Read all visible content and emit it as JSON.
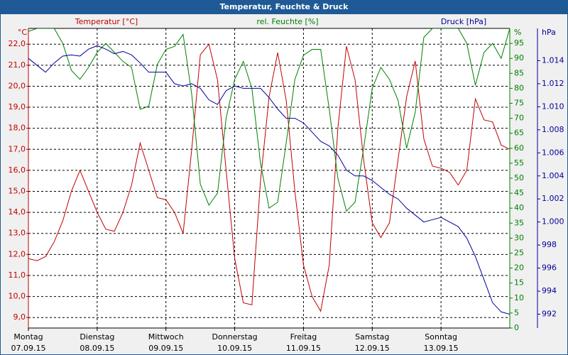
{
  "chart_data": {
    "type": "line",
    "title": "Temperatur, Feuchte & Druck",
    "y_label": "Temperatur [°C]",
    "y2_label": "rel. Feuchte [%]",
    "y3_label": "Druck [hPa]",
    "y_unit": "°C",
    "y2_unit": "%",
    "y3_unit": "hPa",
    "grid": true,
    "xlim": [
      0,
      7
    ],
    "xticks": [
      {
        "value": 0,
        "label": "Montag"
      },
      {
        "value": 1,
        "label": "Dienstag"
      },
      {
        "value": 2,
        "label": "Mittwoch"
      },
      {
        "value": 3,
        "label": "Donnerstag"
      },
      {
        "value": 4,
        "label": "Freitag"
      },
      {
        "value": 5,
        "label": "Samstag"
      },
      {
        "value": 6,
        "label": "Sonntag"
      }
    ],
    "xtick_dates": [
      "07.09.15",
      "08.09.15",
      "09.09.15",
      "10.09.15",
      "11.09.15",
      "12.09.15",
      "13.09.15"
    ],
    "ylim": [
      8.5,
      22.75
    ],
    "yticks": [
      {
        "value": 9,
        "label": "9,0"
      },
      {
        "value": 10,
        "label": "10,0"
      },
      {
        "value": 11,
        "label": "11,0"
      },
      {
        "value": 12,
        "label": "12,0"
      },
      {
        "value": 13,
        "label": "13,0"
      },
      {
        "value": 14,
        "label": "14,0"
      },
      {
        "value": 15,
        "label": "15,0"
      },
      {
        "value": 16,
        "label": "16,0"
      },
      {
        "value": 17,
        "label": "17,0"
      },
      {
        "value": 18,
        "label": "18,0"
      },
      {
        "value": 19,
        "label": "19,0"
      },
      {
        "value": 20,
        "label": "20,0"
      },
      {
        "value": 21,
        "label": "21,0"
      },
      {
        "value": 22,
        "label": "22,0"
      }
    ],
    "y2lim": [
      0,
      100
    ],
    "y2ticks": [
      0,
      5,
      10,
      15,
      20,
      25,
      30,
      35,
      40,
      45,
      50,
      55,
      60,
      65,
      70,
      75,
      80,
      85,
      90,
      95
    ],
    "y3lim": [
      990.8,
      1016.8
    ],
    "y3ticks": [
      992,
      994,
      996,
      998,
      {
        "value": 1000,
        "label": "1.000"
      },
      {
        "value": 1002,
        "label": "1.002"
      },
      {
        "value": 1004,
        "label": "1.004"
      },
      {
        "value": 1006,
        "label": "1.006"
      },
      {
        "value": 1008,
        "label": "1.008"
      },
      {
        "value": 1010,
        "label": "1.010"
      },
      {
        "value": 1012,
        "label": "1.012"
      },
      {
        "value": 1014,
        "label": "1.014"
      }
    ],
    "x": [
      0,
      0.125,
      0.25,
      0.375,
      0.5,
      0.625,
      0.75,
      0.875,
      1,
      1.125,
      1.25,
      1.375,
      1.5,
      1.625,
      1.75,
      1.875,
      2,
      2.125,
      2.25,
      2.375,
      2.5,
      2.625,
      2.75,
      2.875,
      3,
      3.125,
      3.25,
      3.375,
      3.5,
      3.625,
      3.75,
      3.875,
      4,
      4.125,
      4.25,
      4.375,
      4.5,
      4.625,
      4.75,
      4.875,
      5,
      5.125,
      5.25,
      5.375,
      5.5,
      5.625,
      5.75,
      5.875,
      6,
      6.125,
      6.25,
      6.375,
      6.5,
      6.625,
      6.75,
      6.875,
      7
    ],
    "series": [
      {
        "name": "Temperatur",
        "color": "#c00000",
        "axis": "y",
        "values": [
          11.8,
          11.7,
          11.9,
          12.6,
          13.6,
          15.0,
          16.0,
          15.0,
          14.0,
          13.2,
          13.1,
          14.0,
          15.3,
          17.3,
          16.0,
          14.7,
          14.6,
          14.0,
          13.0,
          17.0,
          21.5,
          22.0,
          20.3,
          16.0,
          11.8,
          9.7,
          9.6,
          15.5,
          19.5,
          21.6,
          19.3,
          15.0,
          11.5,
          10.0,
          9.3,
          11.5,
          18.0,
          21.9,
          20.3,
          16.5,
          13.5,
          12.8,
          13.5,
          16.5,
          19.5,
          21.2,
          17.5,
          16.2,
          16.1,
          15.9,
          15.3,
          16.0,
          19.4,
          18.4,
          18.3,
          17.2,
          17.0
        ]
      },
      {
        "name": "rel. Feuchte",
        "color": "#008000",
        "axis": "y2",
        "values": [
          99,
          100,
          100,
          100,
          95,
          86,
          83,
          87,
          92,
          95,
          92,
          89,
          87,
          73,
          74,
          88,
          93,
          94,
          98,
          78,
          48,
          41,
          45,
          70,
          83,
          89,
          80,
          55,
          40,
          42,
          62,
          83,
          91,
          93,
          93,
          73,
          50,
          39,
          42,
          60,
          80,
          87,
          83,
          76,
          60,
          72,
          97,
          100,
          100,
          100,
          100,
          95,
          81,
          92,
          95,
          90,
          100
        ]
      },
      {
        "name": "Druck",
        "color": "#00009c",
        "axis": "y3",
        "values": [
          1014.2,
          1013.6,
          1013.0,
          1013.8,
          1014.4,
          1014.5,
          1014.4,
          1015.0,
          1015.3,
          1015.0,
          1014.6,
          1014.8,
          1014.5,
          1013.8,
          1013.0,
          1013.0,
          1013.0,
          1012.0,
          1011.8,
          1012.0,
          1011.6,
          1010.6,
          1010.2,
          1011.4,
          1011.8,
          1011.6,
          1011.6,
          1011.6,
          1010.8,
          1009.8,
          1009.0,
          1009.0,
          1008.6,
          1007.8,
          1007.0,
          1006.6,
          1005.8,
          1004.5,
          1004.0,
          1004.0,
          1003.6,
          1003.0,
          1002.4,
          1002.0,
          1001.2,
          1000.6,
          1000.0,
          1000.2,
          1000.4,
          1000.0,
          999.6,
          998.6,
          997.0,
          995.0,
          993.0,
          992.2,
          992.0
        ]
      }
    ]
  }
}
